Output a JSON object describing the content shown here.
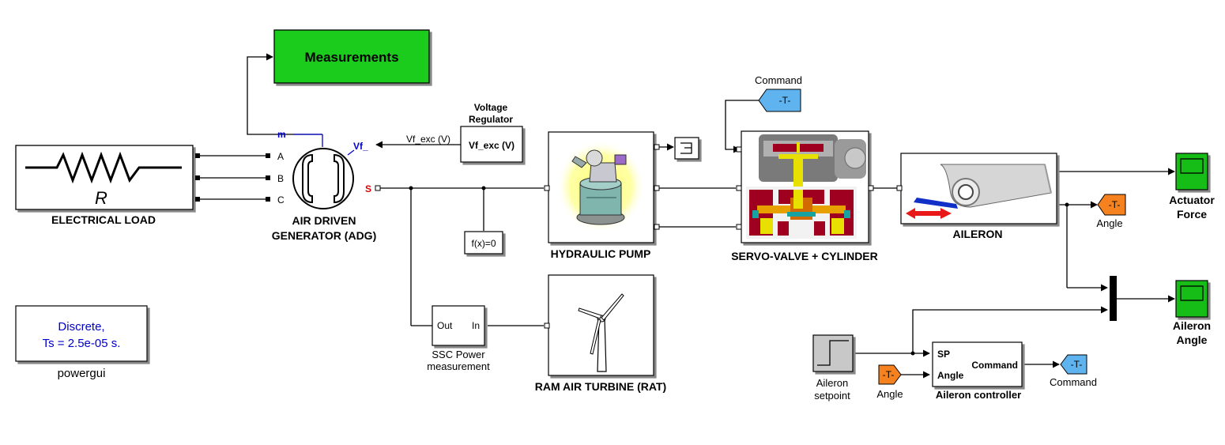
{
  "colors": {
    "measure_fill": "#1fcc1f",
    "goto_blue": "#5fb4ef",
    "goto_orange": "#f5821f",
    "scope_green": "#17bd17",
    "port_blue": "#0000c8",
    "port_red": "#e00000",
    "powergui_text": "#0000c8",
    "line": "#000000"
  },
  "blocks": {
    "measurements": "Measurements",
    "electrical_load": "ELECTRICAL LOAD",
    "resistor_symbol": "R",
    "adg_line1": "AIR DRIVEN",
    "adg_line2": "GENERATOR (ADG)",
    "adg_ports": {
      "m": "m",
      "A": "A",
      "B": "B",
      "C": "C",
      "vf": "Vf_",
      "s": "S"
    },
    "vreg_title1": "Voltage",
    "vreg_title2": "Regulator",
    "vreg_inner": "Vf_exc (V)",
    "vf_line_label": "Vf_exc (V)",
    "fx": "f(x)=0",
    "hydraulic_pump": "HYDRAULIC PUMP",
    "servo_valve": "SERVO-VALVE + CYLINDER",
    "aileron": "AILERON",
    "rat": "RAM AIR TURBINE (RAT)",
    "ssc_out": "Out",
    "ssc_in": "In",
    "ssc_line1": "SSC Power",
    "ssc_line2": "measurement",
    "powergui_line1": "Discrete,",
    "powergui_line2": "Ts = 2.5e-05 s.",
    "powergui": "powergui",
    "actuator_line1": "Actuator",
    "actuator_line2": "Force",
    "aileron_angle_line1": "Aileron",
    "aileron_angle_line2": "Angle",
    "setpoint_line1": "Aileron",
    "setpoint_line2": "setpoint",
    "controller_sp": "SP",
    "controller_angle": "Angle",
    "controller_command": "Command",
    "controller_name": "Aileron controller"
  },
  "tags": {
    "goto_symbol": "-T-",
    "command_top": "Command",
    "angle_right": "Angle",
    "angle_bottom": "Angle",
    "command_bottom": "Command"
  }
}
